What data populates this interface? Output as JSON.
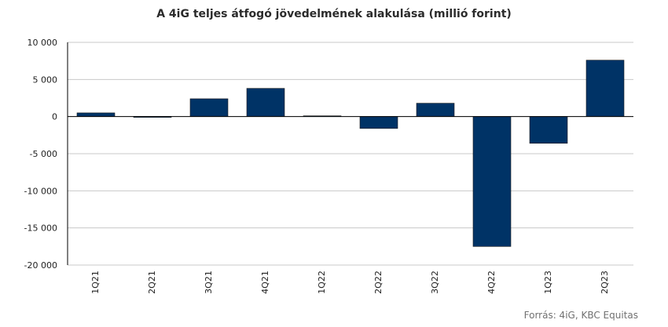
{
  "chart_data": {
    "type": "bar",
    "title": "A 4iG teljes átfogó jövedelmének alakulása (millió forint)",
    "xlabel": "",
    "ylabel": "",
    "categories": [
      "1Q21",
      "2Q21",
      "3Q21",
      "4Q21",
      "1Q22",
      "2Q22",
      "3Q22",
      "4Q22",
      "1Q23",
      "2Q23"
    ],
    "values": [
      500,
      0,
      2400,
      3800,
      100,
      -1600,
      1800,
      -17500,
      -3600,
      7600
    ],
    "ylim": [
      -20000,
      10000
    ],
    "yticks": [
      10000,
      5000,
      0,
      -5000,
      -10000,
      -15000,
      -20000
    ],
    "ytick_labels": [
      "10 000",
      "5 000",
      "0",
      "-5 000",
      "-10 000",
      "-15 000",
      "-20 000"
    ],
    "grid": true,
    "bar_color": "#003366"
  },
  "source": "Forrás: 4iG, KBC Equitas"
}
